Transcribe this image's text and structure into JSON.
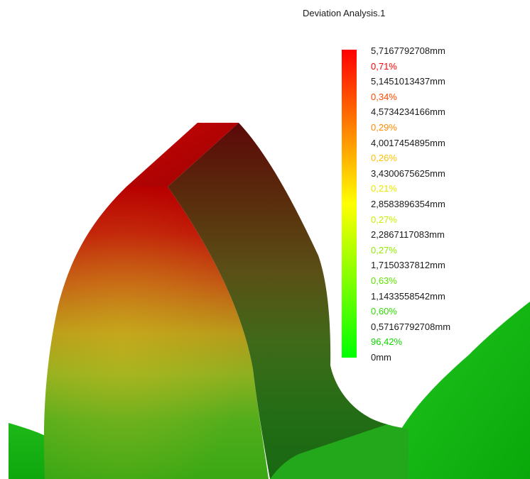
{
  "title": "Deviation Analysis.1",
  "legend": {
    "entries": [
      {
        "text": "5,7167792708mm",
        "color": "#1a1a1a"
      },
      {
        "text": "0,71%",
        "color": "#ff0000"
      },
      {
        "text": "5,1451013437mm",
        "color": "#1a1a1a"
      },
      {
        "text": "0,34%",
        "color": "#ff4a00"
      },
      {
        "text": "4,5734234166mm",
        "color": "#1a1a1a"
      },
      {
        "text": "0,29%",
        "color": "#ff8a00"
      },
      {
        "text": "4,0017454895mm",
        "color": "#1a1a1a"
      },
      {
        "text": "0,26%",
        "color": "#ffc200"
      },
      {
        "text": "3,4300675625mm",
        "color": "#1a1a1a"
      },
      {
        "text": "0,21%",
        "color": "#e8e800"
      },
      {
        "text": "2,8583896354mm",
        "color": "#1a1a1a"
      },
      {
        "text": "0,27%",
        "color": "#c8f000"
      },
      {
        "text": "2,2867117083mm",
        "color": "#1a1a1a"
      },
      {
        "text": "0,27%",
        "color": "#94ea00"
      },
      {
        "text": "1,7150337812mm",
        "color": "#1a1a1a"
      },
      {
        "text": "0,63%",
        "color": "#5ee200"
      },
      {
        "text": "1,1433558542mm",
        "color": "#1a1a1a"
      },
      {
        "text": "0,60%",
        "color": "#30dc00"
      },
      {
        "text": "0,57167792708mm",
        "color": "#1a1a1a"
      },
      {
        "text": "96,42%",
        "color": "#10d800"
      },
      {
        "text": "0mm",
        "color": "#1a1a1a"
      }
    ],
    "gradient_colors": [
      "#ff0000",
      "#ff4000",
      "#ff8000",
      "#ffbf00",
      "#ffff00",
      "#bfff00",
      "#80ff00",
      "#40ff00",
      "#00ff00"
    ]
  }
}
